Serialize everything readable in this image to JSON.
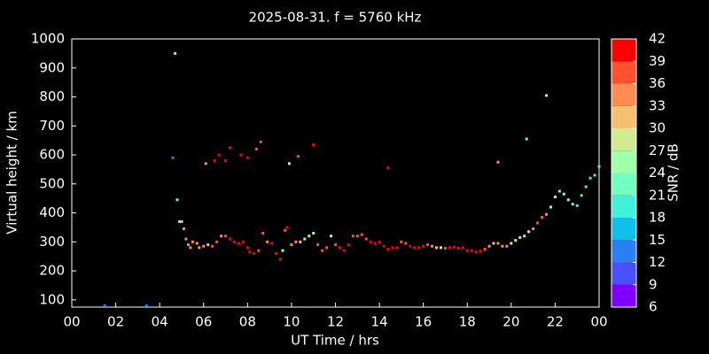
{
  "chart_data": {
    "type": "scatter",
    "title": "2025-08-31. f = 5760 kHz",
    "x_label": "UT Time / hrs",
    "y_label": "Virtual height / km",
    "x": [
      1.5,
      3.4,
      4.7,
      4.6,
      4.8,
      4.9,
      5.0,
      5.1,
      5.2,
      5.3,
      5.4,
      5.5,
      5.7,
      5.8,
      6.0,
      6.2,
      6.4,
      6.6,
      6.8,
      7.0,
      7.2,
      7.4,
      7.6,
      7.8,
      8.0,
      8.1,
      8.3,
      8.5,
      8.7,
      8.9,
      9.1,
      9.3,
      9.5,
      9.6,
      9.7,
      9.8,
      10.0,
      10.2,
      10.4,
      10.6,
      10.8,
      11.0,
      11.2,
      11.4,
      11.6,
      11.8,
      12.0,
      12.2,
      12.4,
      12.6,
      12.8,
      13.0,
      13.2,
      13.4,
      13.6,
      13.8,
      14.0,
      14.2,
      14.4,
      14.6,
      14.8,
      15.0,
      15.2,
      15.4,
      15.6,
      15.8,
      16.0,
      16.2,
      16.4,
      16.6,
      16.8,
      17.0,
      17.2,
      17.4,
      17.6,
      17.8,
      18.0,
      18.2,
      18.4,
      18.6,
      18.8,
      19.0,
      19.2,
      19.4,
      19.6,
      19.8,
      20.0,
      20.2,
      20.4,
      20.6,
      20.8,
      21.0,
      21.2,
      21.4,
      21.6,
      21.8,
      22.0,
      22.2,
      22.4,
      22.6,
      22.8,
      23.0,
      23.2,
      23.4,
      23.6,
      23.8,
      24.0,
      6.1,
      6.5,
      6.7,
      7.0,
      7.2,
      7.7,
      8.0,
      8.4,
      8.6,
      9.9,
      10.3,
      11.0,
      14.4,
      19.4,
      20.7,
      21.6
    ],
    "y": [
      80,
      80,
      950,
      590,
      445,
      370,
      370,
      345,
      310,
      290,
      280,
      300,
      295,
      280,
      285,
      290,
      285,
      300,
      320,
      320,
      310,
      300,
      295,
      300,
      280,
      265,
      260,
      270,
      330,
      300,
      295,
      260,
      240,
      270,
      340,
      350,
      290,
      300,
      300,
      310,
      320,
      330,
      290,
      270,
      280,
      320,
      290,
      280,
      270,
      290,
      320,
      320,
      325,
      310,
      300,
      295,
      300,
      285,
      275,
      280,
      280,
      300,
      295,
      285,
      280,
      280,
      285,
      290,
      285,
      280,
      280,
      278,
      280,
      282,
      278,
      280,
      270,
      270,
      265,
      268,
      275,
      285,
      295,
      295,
      285,
      285,
      295,
      305,
      315,
      320,
      335,
      345,
      365,
      385,
      395,
      420,
      455,
      475,
      465,
      445,
      430,
      425,
      460,
      490,
      520,
      530,
      560,
      570,
      580,
      600,
      580,
      625,
      600,
      590,
      620,
      645,
      570,
      595,
      635,
      555,
      575,
      655,
      805
    ],
    "snr": [
      12,
      12,
      21,
      12,
      21,
      21,
      21,
      33,
      33,
      33,
      33,
      33,
      33,
      33,
      33,
      30,
      36,
      36,
      33,
      36,
      39,
      39,
      39,
      39,
      39,
      39,
      39,
      36,
      36,
      33,
      39,
      39,
      39,
      24,
      36,
      39,
      33,
      33,
      30,
      27,
      27,
      24,
      36,
      36,
      36,
      24,
      36,
      39,
      39,
      39,
      36,
      36,
      36,
      36,
      39,
      39,
      39,
      39,
      39,
      39,
      39,
      36,
      36,
      39,
      39,
      39,
      39,
      36,
      33,
      30,
      27,
      36,
      39,
      39,
      39,
      39,
      39,
      39,
      39,
      39,
      36,
      33,
      30,
      33,
      33,
      33,
      27,
      27,
      27,
      27,
      27,
      33,
      36,
      36,
      33,
      24,
      24,
      21,
      24,
      24,
      21,
      18,
      18,
      18,
      18,
      18,
      18,
      33,
      39,
      39,
      39,
      39,
      39,
      39,
      36,
      36,
      27,
      36,
      39,
      39,
      33,
      21,
      24
    ],
    "xlim": [
      0,
      24
    ],
    "ylim": [
      75,
      1000
    ],
    "xticks": [
      {
        "value": 0,
        "label": "00"
      },
      {
        "value": 2,
        "label": "02"
      },
      {
        "value": 4,
        "label": "04"
      },
      {
        "value": 6,
        "label": "06"
      },
      {
        "value": 8,
        "label": "08"
      },
      10,
      12,
      14,
      16,
      18,
      20,
      22,
      {
        "value": 24,
        "label": "00"
      }
    ],
    "yticks": [
      100,
      200,
      300,
      400,
      500,
      600,
      700,
      800,
      900,
      1000
    ],
    "background": "#000000",
    "colorbar": {
      "label": "SNR / dB",
      "ticks": [
        6,
        9,
        12,
        15,
        18,
        21,
        24,
        27,
        30,
        33,
        36,
        39,
        42
      ],
      "colors": [
        "#8000ff",
        "#4a50ff",
        "#2a80f0",
        "#10c0e8",
        "#40f0d8",
        "#70ffc0",
        "#a0ffa8",
        "#d0ec90",
        "#f5c070",
        "#ff8c50",
        "#ff5030",
        "#ff0000"
      ]
    }
  }
}
